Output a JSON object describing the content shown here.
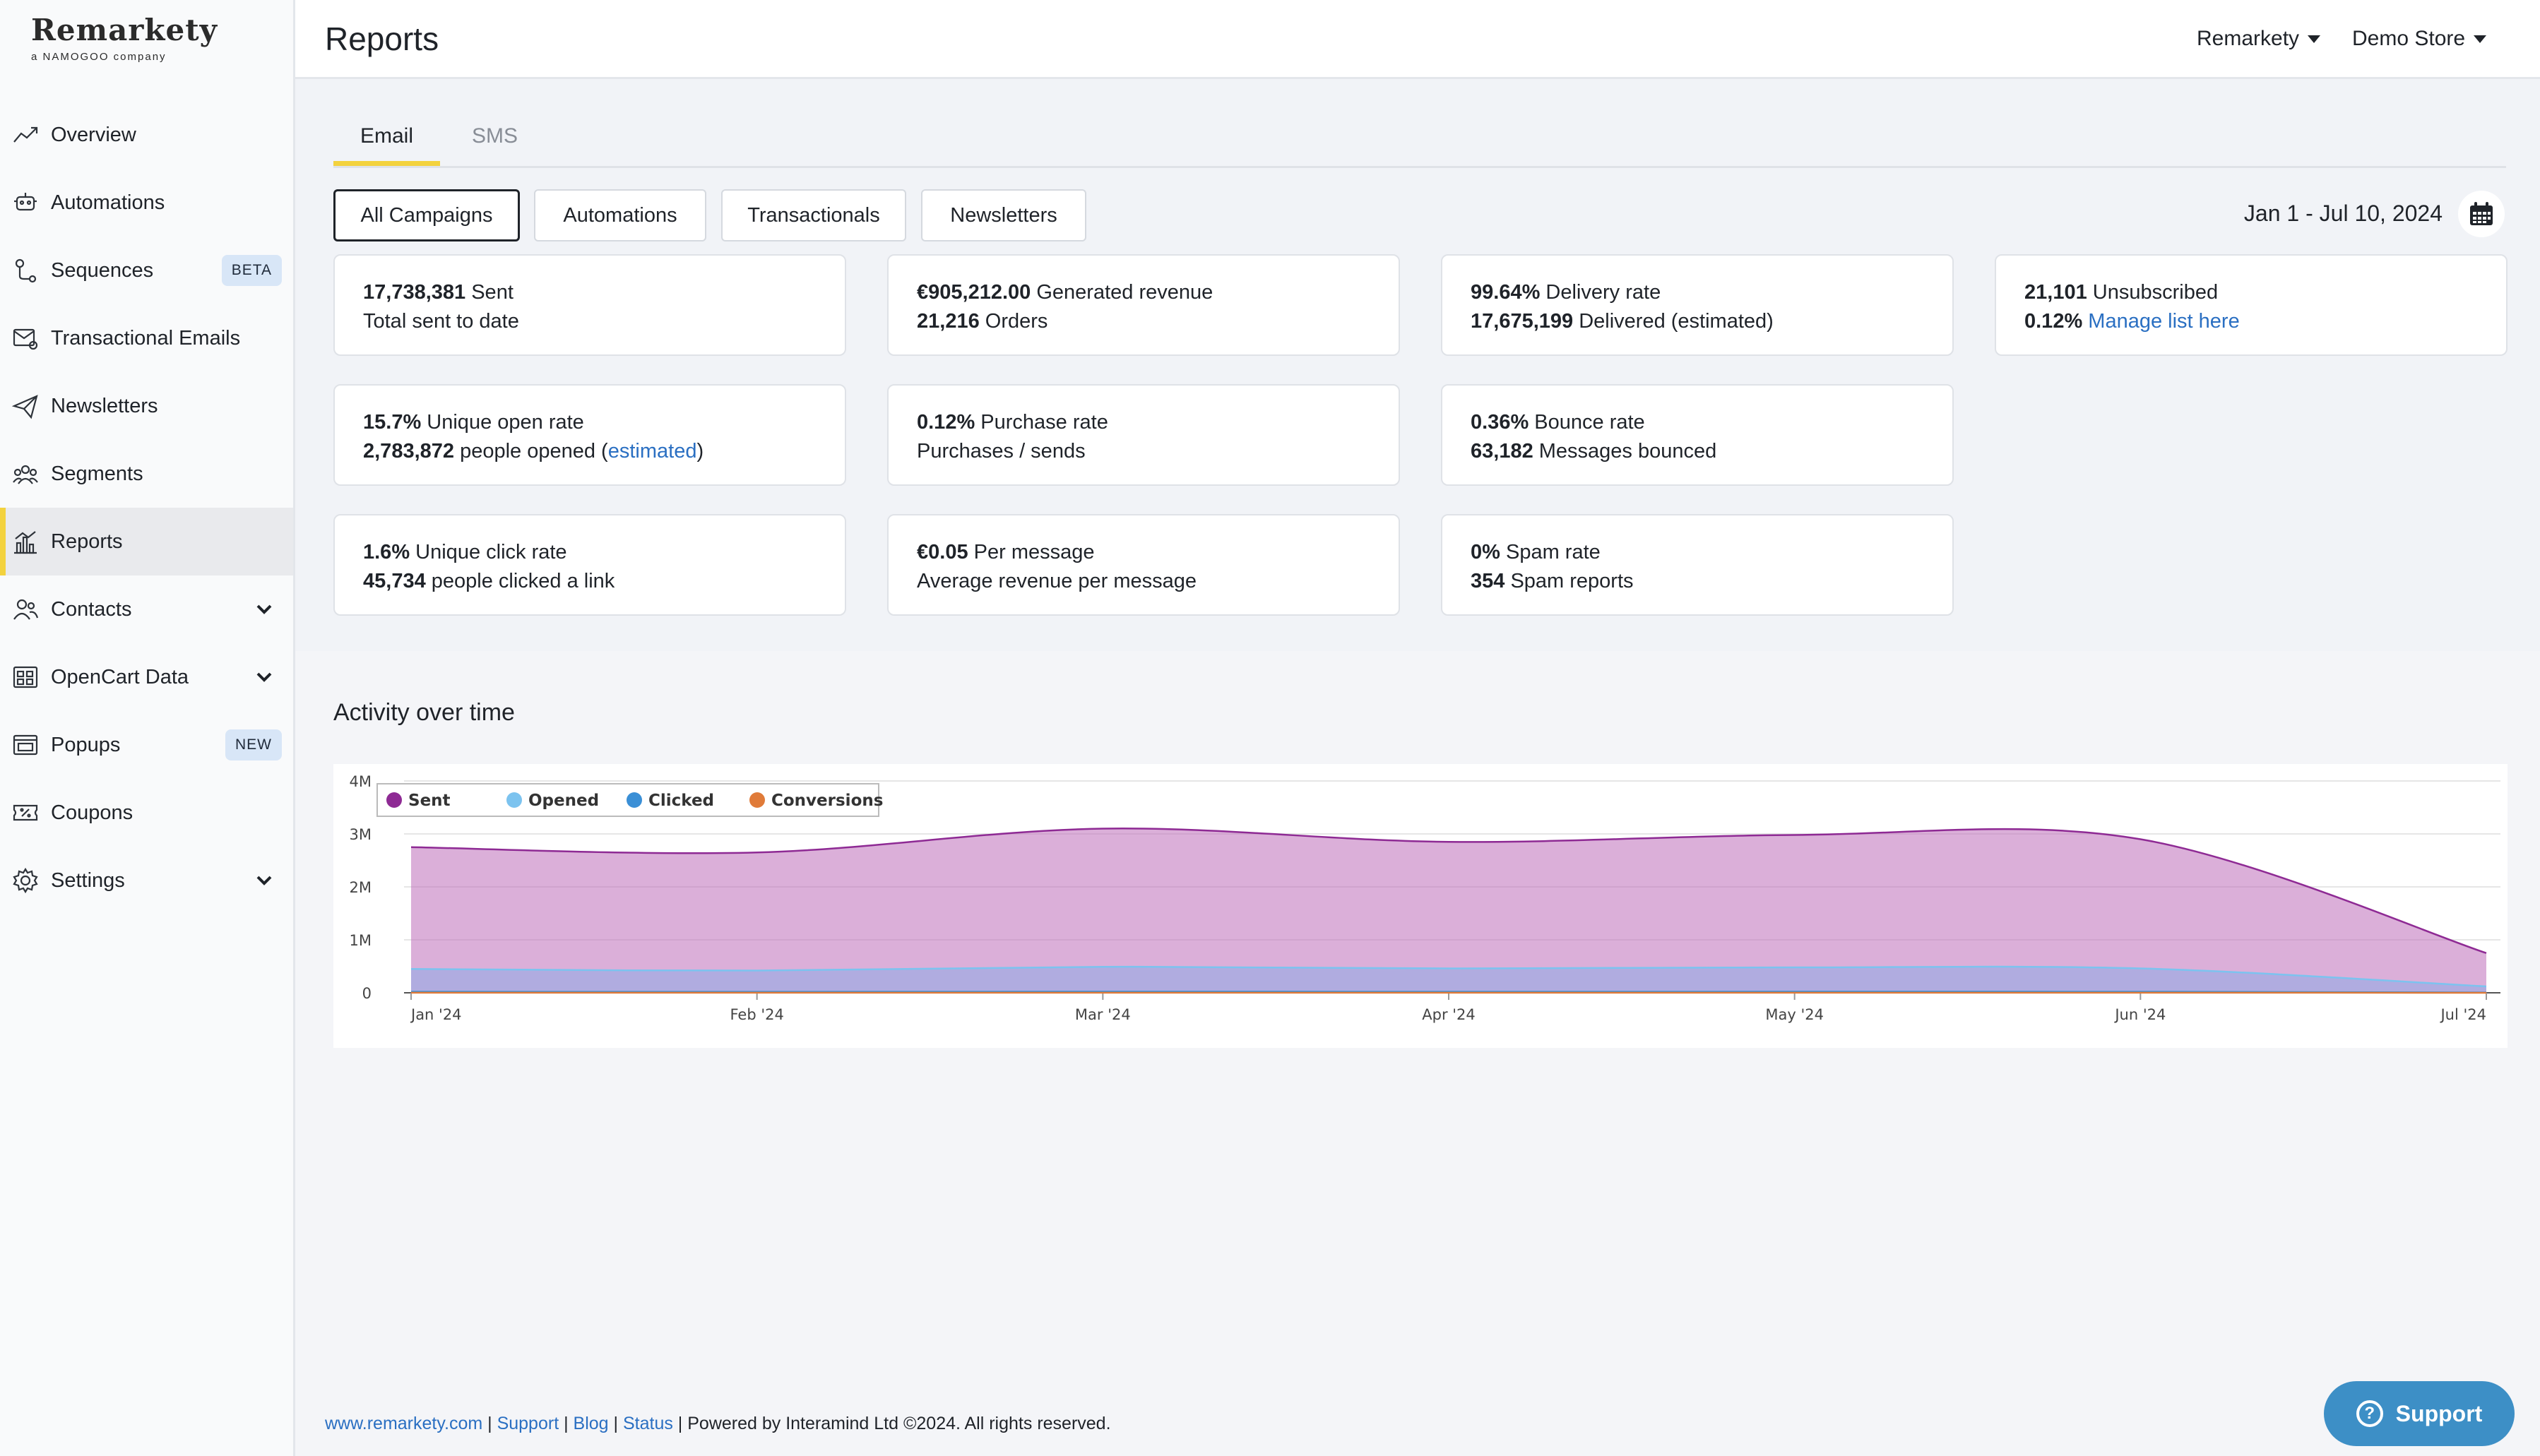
{
  "brand": {
    "name": "Remarkety",
    "tagline": "a NAMOGOO company"
  },
  "nav": [
    {
      "label": "Overview",
      "icon": "trend-up-icon"
    },
    {
      "label": "Automations",
      "icon": "robot-icon"
    },
    {
      "label": "Sequences",
      "icon": "route-icon",
      "badge": "BETA"
    },
    {
      "label": "Transactional Emails",
      "icon": "mail-gear-icon"
    },
    {
      "label": "Newsletters",
      "icon": "paper-plane-icon"
    },
    {
      "label": "Segments",
      "icon": "people-group-icon"
    },
    {
      "label": "Reports",
      "icon": "bar-chart-icon",
      "active": true
    },
    {
      "label": "Contacts",
      "icon": "contacts-icon",
      "expandable": true
    },
    {
      "label": "OpenCart Data",
      "icon": "grid-icon",
      "expandable": true
    },
    {
      "label": "Popups",
      "icon": "popup-window-icon",
      "badge": "NEW"
    },
    {
      "label": "Coupons",
      "icon": "coupon-icon"
    },
    {
      "label": "Settings",
      "icon": "gear-icon",
      "expandable": true
    }
  ],
  "header": {
    "title": "Reports",
    "account": "Remarkety",
    "store": "Demo Store"
  },
  "tabs": [
    "Email",
    "SMS"
  ],
  "filters": [
    "All Campaigns",
    "Automations",
    "Transactionals",
    "Newsletters"
  ],
  "date_range": "Jan 1 - Jul 10, 2024",
  "cards": {
    "sent": {
      "v1": "17,738,381",
      "l1": "Sent",
      "l2": "Total sent to date"
    },
    "revenue": {
      "v1": "€905,212.00",
      "l1": "Generated revenue",
      "v2": "21,216",
      "l2": "Orders"
    },
    "delivery": {
      "v1": "99.64%",
      "l1": "Delivery rate",
      "v2": "17,675,199",
      "l2": "Delivered (estimated)"
    },
    "unsub": {
      "v1": "21,101",
      "l1": "Unsubscribed",
      "v2": "0.12%",
      "l2": "Manage list here"
    },
    "open": {
      "v1": "15.7%",
      "l1": "Unique open rate",
      "v2": "2,783,872",
      "l2": "people opened (",
      "l2_link": "estimated",
      "l2_end": ")"
    },
    "purchase": {
      "v1": "0.12%",
      "l1": "Purchase rate",
      "l2": "Purchases / sends"
    },
    "bounce": {
      "v1": "0.36%",
      "l1": "Bounce rate",
      "v2": "63,182",
      "l2": "Messages bounced"
    },
    "click": {
      "v1": "1.6%",
      "l1": "Unique click rate",
      "v2": "45,734",
      "l2": "people clicked a link"
    },
    "per_message": {
      "v1": "€0.05",
      "l1": "Per message",
      "l2": "Average revenue per message"
    },
    "spam": {
      "v1": "0%",
      "l1": "Spam rate",
      "v2": "354",
      "l2": "Spam reports"
    }
  },
  "chart_data": {
    "type": "area",
    "title": "Activity over time",
    "x": [
      "Jan '24",
      "Feb '24",
      "Mar '24",
      "Apr '24",
      "May '24",
      "Jun '24",
      "Jul '24"
    ],
    "yticks": [
      "0",
      "1M",
      "2M",
      "3M",
      "4M"
    ],
    "ylim": [
      0,
      4000000
    ],
    "legend_position": "top-left",
    "grid": true,
    "series": [
      {
        "name": "Sent",
        "color": "#8e2a94",
        "values": [
          2750000,
          2650000,
          3100000,
          2850000,
          2980000,
          2900000,
          750000
        ]
      },
      {
        "name": "Opened",
        "color": "#7cc3ef",
        "values": [
          450000,
          420000,
          490000,
          460000,
          480000,
          460000,
          120000
        ]
      },
      {
        "name": "Clicked",
        "color": "#3a8fd6",
        "values": [
          20000,
          18000,
          22000,
          20000,
          21000,
          20000,
          5000
        ]
      },
      {
        "name": "Conversions",
        "color": "#e07b39",
        "values": [
          2000,
          1800,
          2200,
          2000,
          2100,
          2000,
          500
        ]
      }
    ]
  },
  "footer": {
    "site": "www.remarkety.com",
    "support": "Support",
    "blog": "Blog",
    "status": "Status",
    "powered": "Powered by Interamind Ltd ©2024. All rights reserved."
  },
  "support_button": "Support"
}
